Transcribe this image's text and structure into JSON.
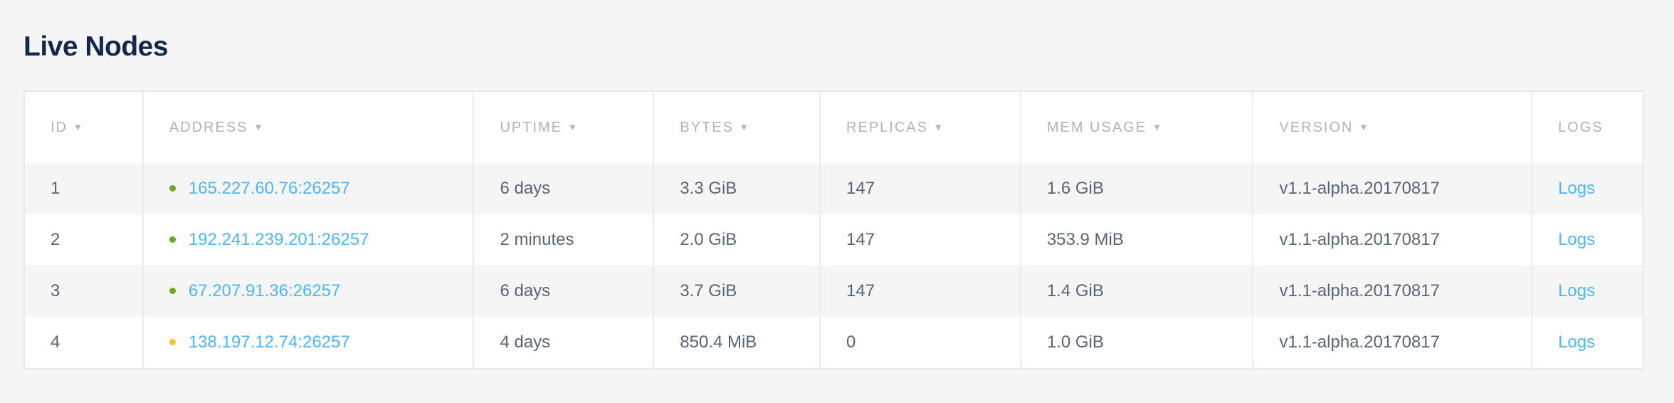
{
  "page_title": "Live Nodes",
  "colors": {
    "live": "#6aaa1e",
    "suspect": "#f6c325",
    "link": "#4db6ff"
  },
  "columns": [
    {
      "label": "ID",
      "sortable": true
    },
    {
      "label": "ADDRESS",
      "sortable": true
    },
    {
      "label": "UPTIME",
      "sortable": true
    },
    {
      "label": "BYTES",
      "sortable": true
    },
    {
      "label": "REPLICAS",
      "sortable": true
    },
    {
      "label": "MEM USAGE",
      "sortable": true
    },
    {
      "label": "VERSION",
      "sortable": true
    },
    {
      "label": "LOGS",
      "sortable": false
    }
  ],
  "sort_arrow": "▼",
  "rows": [
    {
      "id": "1",
      "status": "live",
      "address": "165.227.60.76:26257",
      "uptime": "6 days",
      "bytes": "3.3 GiB",
      "replicas": "147",
      "mem": "1.6 GiB",
      "version": "v1.1-alpha.20170817",
      "logs": "Logs"
    },
    {
      "id": "2",
      "status": "live",
      "address": "192.241.239.201:26257",
      "uptime": "2 minutes",
      "bytes": "2.0 GiB",
      "replicas": "147",
      "mem": "353.9 MiB",
      "version": "v1.1-alpha.20170817",
      "logs": "Logs"
    },
    {
      "id": "3",
      "status": "live",
      "address": "67.207.91.36:26257",
      "uptime": "6 days",
      "bytes": "3.7 GiB",
      "replicas": "147",
      "mem": "1.4 GiB",
      "version": "v1.1-alpha.20170817",
      "logs": "Logs"
    },
    {
      "id": "4",
      "status": "suspect",
      "address": "138.197.12.74:26257",
      "uptime": "4 days",
      "bytes": "850.4 MiB",
      "replicas": "0",
      "mem": "1.0 GiB",
      "version": "v1.1-alpha.20170817",
      "logs": "Logs"
    }
  ]
}
